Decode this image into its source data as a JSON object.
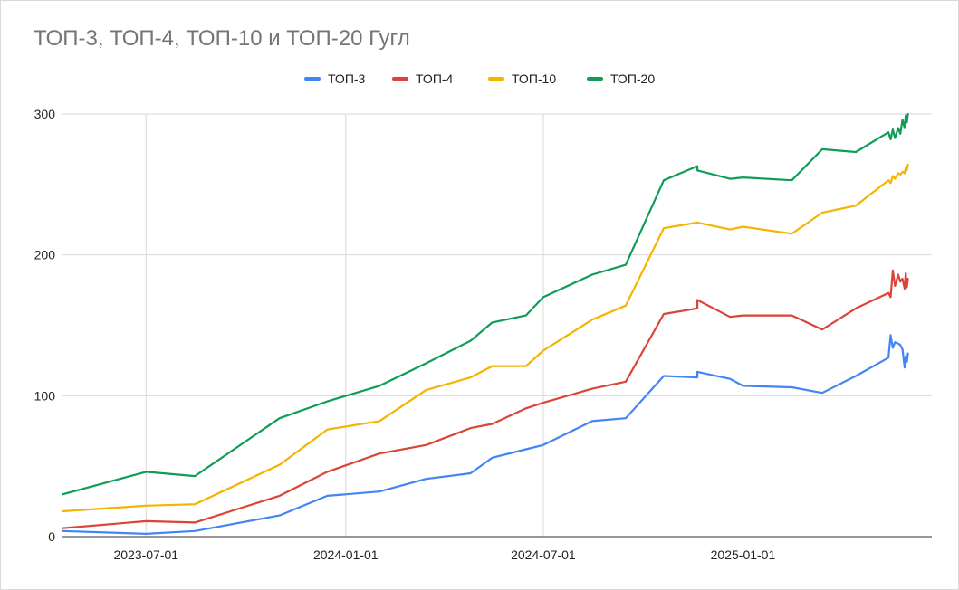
{
  "chart_data": {
    "type": "line",
    "title": "ТОП-3, ТОП-4, ТОП-10 и ТОП-20 Гугл",
    "xlabel": "",
    "ylabel": "",
    "x_type": "date",
    "xlim": [
      "2023-04-15",
      "2025-06-24"
    ],
    "ylim": [
      0,
      300
    ],
    "x_ticks": [
      "2023-07-01",
      "2024-01-01",
      "2024-07-01",
      "2025-01-01"
    ],
    "y_ticks": [
      0,
      100,
      200,
      300
    ],
    "grid": true,
    "legend_position": "top",
    "series": [
      {
        "name": "ТОП-3",
        "color": "#4285f4",
        "points": [
          [
            "2023-04-15",
            4
          ],
          [
            "2023-07-01",
            2
          ],
          [
            "2023-08-15",
            4
          ],
          [
            "2023-11-01",
            15
          ],
          [
            "2023-12-15",
            29
          ],
          [
            "2024-02-01",
            32
          ],
          [
            "2024-03-15",
            41
          ],
          [
            "2024-04-25",
            45
          ],
          [
            "2024-05-15",
            56
          ],
          [
            "2024-06-15",
            62
          ],
          [
            "2024-07-01",
            65
          ],
          [
            "2024-08-15",
            82
          ],
          [
            "2024-09-15",
            84
          ],
          [
            "2024-10-20",
            114
          ],
          [
            "2024-11-20",
            113
          ],
          [
            "2024-11-20",
            117
          ],
          [
            "2024-12-20",
            112
          ],
          [
            "2025-01-01",
            107
          ],
          [
            "2025-02-15",
            106
          ],
          [
            "2025-03-15",
            102
          ],
          [
            "2025-04-15",
            114
          ],
          [
            "2025-05-15",
            127
          ],
          [
            "2025-05-17",
            143
          ],
          [
            "2025-05-19",
            134
          ],
          [
            "2025-05-21",
            138
          ],
          [
            "2025-05-24",
            137
          ],
          [
            "2025-05-26",
            136
          ],
          [
            "2025-05-28",
            133
          ],
          [
            "2025-05-30",
            120
          ],
          [
            "2025-05-31",
            128
          ],
          [
            "2025-06-01",
            124
          ],
          [
            "2025-06-02",
            130
          ]
        ]
      },
      {
        "name": "ТОП-4",
        "color": "#db4437",
        "points": [
          [
            "2023-04-15",
            6
          ],
          [
            "2023-07-01",
            11
          ],
          [
            "2023-08-15",
            10
          ],
          [
            "2023-11-01",
            29
          ],
          [
            "2023-12-15",
            46
          ],
          [
            "2024-02-01",
            59
          ],
          [
            "2024-03-15",
            65
          ],
          [
            "2024-04-25",
            77
          ],
          [
            "2024-05-15",
            80
          ],
          [
            "2024-06-15",
            91
          ],
          [
            "2024-07-01",
            95
          ],
          [
            "2024-08-15",
            105
          ],
          [
            "2024-09-15",
            110
          ],
          [
            "2024-10-20",
            158
          ],
          [
            "2024-11-20",
            162
          ],
          [
            "2024-11-20",
            168
          ],
          [
            "2024-12-20",
            156
          ],
          [
            "2025-01-01",
            157
          ],
          [
            "2025-02-15",
            157
          ],
          [
            "2025-03-15",
            147
          ],
          [
            "2025-04-15",
            162
          ],
          [
            "2025-05-15",
            173
          ],
          [
            "2025-05-17",
            170
          ],
          [
            "2025-05-19",
            189
          ],
          [
            "2025-05-21",
            178
          ],
          [
            "2025-05-24",
            186
          ],
          [
            "2025-05-26",
            181
          ],
          [
            "2025-05-28",
            183
          ],
          [
            "2025-05-30",
            176
          ],
          [
            "2025-05-31",
            187
          ],
          [
            "2025-06-01",
            177
          ],
          [
            "2025-06-02",
            183
          ]
        ]
      },
      {
        "name": "ТОП-10",
        "color": "#f4b400",
        "points": [
          [
            "2023-04-15",
            18
          ],
          [
            "2023-07-01",
            22
          ],
          [
            "2023-08-15",
            23
          ],
          [
            "2023-11-01",
            51
          ],
          [
            "2023-12-15",
            76
          ],
          [
            "2024-02-01",
            82
          ],
          [
            "2024-03-15",
            104
          ],
          [
            "2024-04-25",
            113
          ],
          [
            "2024-05-15",
            121
          ],
          [
            "2024-06-15",
            121
          ],
          [
            "2024-07-01",
            132
          ],
          [
            "2024-08-15",
            154
          ],
          [
            "2024-09-15",
            164
          ],
          [
            "2024-10-20",
            219
          ],
          [
            "2024-11-20",
            223
          ],
          [
            "2024-11-20",
            223
          ],
          [
            "2024-12-20",
            218
          ],
          [
            "2025-01-01",
            220
          ],
          [
            "2025-02-15",
            215
          ],
          [
            "2025-03-15",
            230
          ],
          [
            "2025-04-15",
            235
          ],
          [
            "2025-05-15",
            253
          ],
          [
            "2025-05-17",
            251
          ],
          [
            "2025-05-19",
            256
          ],
          [
            "2025-05-21",
            254
          ],
          [
            "2025-05-24",
            258
          ],
          [
            "2025-05-26",
            257
          ],
          [
            "2025-05-28",
            259
          ],
          [
            "2025-05-30",
            258
          ],
          [
            "2025-05-31",
            262
          ],
          [
            "2025-06-01",
            260
          ],
          [
            "2025-06-02",
            264
          ]
        ]
      },
      {
        "name": "ТОП-20",
        "color": "#0f9d58",
        "points": [
          [
            "2023-04-15",
            30
          ],
          [
            "2023-07-01",
            46
          ],
          [
            "2023-08-15",
            43
          ],
          [
            "2023-11-01",
            84
          ],
          [
            "2023-12-15",
            96
          ],
          [
            "2024-02-01",
            107
          ],
          [
            "2024-03-15",
            123
          ],
          [
            "2024-04-25",
            139
          ],
          [
            "2024-05-15",
            152
          ],
          [
            "2024-06-15",
            157
          ],
          [
            "2024-07-01",
            170
          ],
          [
            "2024-08-15",
            186
          ],
          [
            "2024-09-15",
            193
          ],
          [
            "2024-10-20",
            253
          ],
          [
            "2024-11-20",
            263
          ],
          [
            "2024-11-20",
            260
          ],
          [
            "2024-12-20",
            254
          ],
          [
            "2025-01-01",
            255
          ],
          [
            "2025-02-15",
            253
          ],
          [
            "2025-03-15",
            275
          ],
          [
            "2025-04-15",
            273
          ],
          [
            "2025-05-15",
            287
          ],
          [
            "2025-05-17",
            282
          ],
          [
            "2025-05-19",
            289
          ],
          [
            "2025-05-21",
            283
          ],
          [
            "2025-05-24",
            290
          ],
          [
            "2025-05-26",
            286
          ],
          [
            "2025-05-28",
            296
          ],
          [
            "2025-05-30",
            290
          ],
          [
            "2025-05-31",
            299
          ],
          [
            "2025-06-01",
            294
          ],
          [
            "2025-06-02",
            300
          ]
        ]
      }
    ]
  }
}
